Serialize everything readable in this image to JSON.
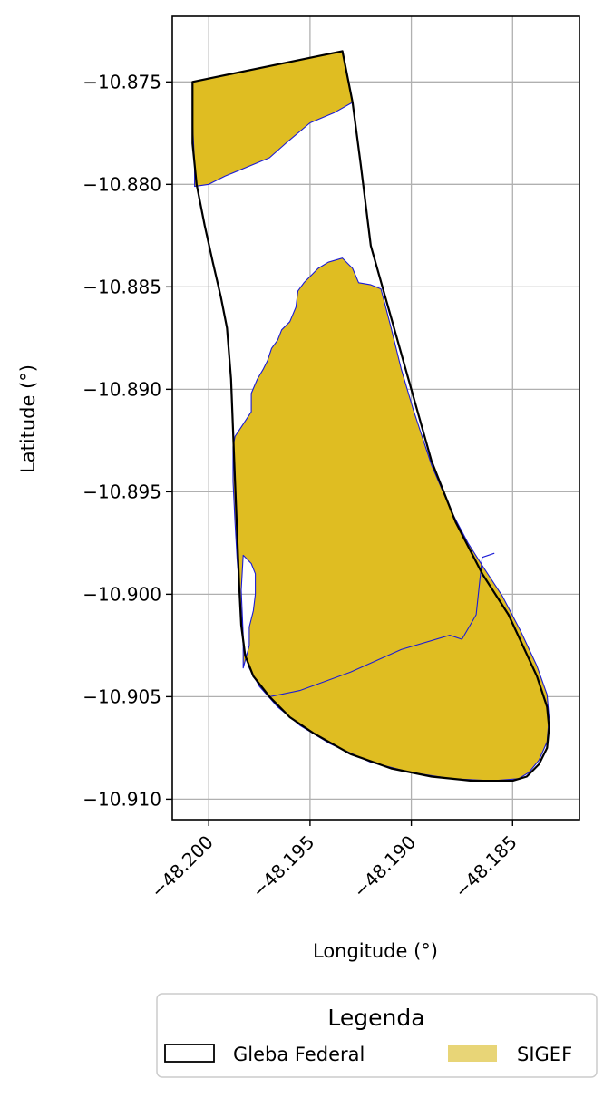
{
  "chart_data": {
    "type": "map",
    "xlabel": "Longitude (°)",
    "ylabel": "Latitude (°)",
    "xlim": [
      -48.2018,
      -48.1817
    ],
    "ylim": [
      -10.911,
      -10.8718
    ],
    "grid": true,
    "x_ticks": [
      {
        "value": -48.2,
        "label": "−48.200"
      },
      {
        "value": -48.195,
        "label": "−48.195"
      },
      {
        "value": -48.19,
        "label": "−48.190"
      },
      {
        "value": -48.185,
        "label": "−48.185"
      }
    ],
    "y_ticks": [
      {
        "value": -10.875,
        "label": "−10.875"
      },
      {
        "value": -10.88,
        "label": "−10.880"
      },
      {
        "value": -10.885,
        "label": "−10.885"
      },
      {
        "value": -10.89,
        "label": "−10.890"
      },
      {
        "value": -10.895,
        "label": "−10.895"
      },
      {
        "value": -10.9,
        "label": "−10.900"
      },
      {
        "value": -10.905,
        "label": "−10.905"
      },
      {
        "value": -10.91,
        "label": "−10.910"
      }
    ],
    "legend": {
      "title": "Legenda",
      "placement": "below",
      "entries": [
        {
          "label": "Gleba Federal",
          "style": "outline",
          "color": "#000000"
        },
        {
          "label": "SIGEF",
          "style": "fill",
          "color": "#e8d577"
        }
      ]
    },
    "layers": [
      {
        "name": "SIGEF",
        "fill": "#dfbd22",
        "stroke": "#1b1bd6",
        "polygons": [
          [
            [
              -48.2008,
              -10.875
            ],
            [
              -48.1934,
              -10.8735
            ],
            [
              -48.1929,
              -10.876
            ],
            [
              -48.1938,
              -10.8765
            ],
            [
              -48.195,
              -10.877
            ],
            [
              -48.1962,
              -10.878
            ],
            [
              -48.197,
              -10.8787
            ],
            [
              -48.1992,
              -10.8796
            ],
            [
              -48.2,
              -10.88
            ],
            [
              -48.2007,
              -10.8801
            ],
            [
              -48.2007,
              -10.879
            ],
            [
              -48.2008,
              -10.877
            ],
            [
              -48.2008,
              -10.876
            ]
          ],
          [
            [
              -48.1934,
              -10.8836
            ],
            [
              -48.1929,
              -10.8841
            ],
            [
              -48.1926,
              -10.8848
            ],
            [
              -48.192,
              -10.8849
            ],
            [
              -48.1915,
              -10.8851
            ],
            [
              -48.191,
              -10.887
            ],
            [
              -48.1905,
              -10.889
            ],
            [
              -48.1899,
              -10.891
            ],
            [
              -48.189,
              -10.8937
            ],
            [
              -48.188,
              -10.896
            ],
            [
              -48.1872,
              -10.8975
            ],
            [
              -48.1865,
              -10.8986
            ],
            [
              -48.1855,
              -10.9001
            ],
            [
              -48.1846,
              -10.9018
            ],
            [
              -48.1838,
              -10.9035
            ],
            [
              -48.1833,
              -10.9049
            ],
            [
              -48.1832,
              -10.906
            ],
            [
              -48.1833,
              -10.9072
            ],
            [
              -48.1837,
              -10.9081
            ],
            [
              -48.1842,
              -10.9087
            ],
            [
              -48.1847,
              -10.909
            ],
            [
              -48.186,
              -10.9091
            ],
            [
              -48.188,
              -10.909
            ],
            [
              -48.19,
              -10.9087
            ],
            [
              -48.192,
              -10.9082
            ],
            [
              -48.194,
              -10.9073
            ],
            [
              -48.1955,
              -10.9064
            ],
            [
              -48.1966,
              -10.9055
            ],
            [
              -48.1975,
              -10.9045
            ],
            [
              -48.198,
              -10.9036
            ],
            [
              -48.1983,
              -10.9025
            ],
            [
              -48.1984,
              -10.901
            ],
            [
              -48.1985,
              -10.8995
            ],
            [
              -48.1986,
              -10.8983
            ],
            [
              -48.1987,
              -10.8965
            ],
            [
              -48.1988,
              -10.8945
            ],
            [
              -48.1988,
              -10.8928
            ],
            [
              -48.1987,
              -10.8923
            ],
            [
              -48.1983,
              -10.8917
            ],
            [
              -48.1979,
              -10.8911
            ],
            [
              -48.1979,
              -10.8902
            ],
            [
              -48.1976,
              -10.8895
            ],
            [
              -48.1973,
              -10.889
            ],
            [
              -48.1971,
              -10.8886
            ],
            [
              -48.1969,
              -10.888
            ],
            [
              -48.1966,
              -10.8876
            ],
            [
              -48.1964,
              -10.8871
            ],
            [
              -48.196,
              -10.8867
            ],
            [
              -48.1957,
              -10.886
            ],
            [
              -48.1956,
              -10.8852
            ],
            [
              -48.1953,
              -10.8848
            ],
            [
              -48.195,
              -10.8845
            ],
            [
              -48.1946,
              -10.8841
            ],
            [
              -48.1941,
              -10.8838
            ]
          ]
        ],
        "holes": [
          [
            [
              -48.1983,
              -10.9036
            ],
            [
              -48.198,
              -10.9025
            ],
            [
              -48.198,
              -10.9016
            ],
            [
              -48.1978,
              -10.9008
            ],
            [
              -48.1977,
              -10.9
            ],
            [
              -48.1977,
              -10.899
            ],
            [
              -48.1979,
              -10.8985
            ],
            [
              -48.1983,
              -10.8981
            ],
            [
              -48.1984,
              -10.8998
            ],
            [
              -48.1983,
              -10.902
            ]
          ]
        ],
        "boundaries": [
          [
            [
              -48.197,
              -10.905
            ],
            [
              -48.1955,
              -10.9047
            ],
            [
              -48.193,
              -10.9038
            ],
            [
              -48.1905,
              -10.9027
            ],
            [
              -48.1881,
              -10.902
            ],
            [
              -48.1875,
              -10.9022
            ],
            [
              -48.1868,
              -10.901
            ],
            [
              -48.1865,
              -10.8982
            ],
            [
              -48.1859,
              -10.898
            ]
          ]
        ]
      },
      {
        "name": "Gleba Federal",
        "fill": "none",
        "stroke": "#000000",
        "polygons": [
          [
            [
              -48.2008,
              -10.875
            ],
            [
              -48.1934,
              -10.8735
            ],
            [
              -48.1929,
              -10.876
            ],
            [
              -48.1925,
              -10.879
            ],
            [
              -48.192,
              -10.883
            ],
            [
              -48.191,
              -10.8865
            ],
            [
              -48.19,
              -10.89
            ],
            [
              -48.189,
              -10.8935
            ],
            [
              -48.1878,
              -10.8965
            ],
            [
              -48.1865,
              -10.899
            ],
            [
              -48.1852,
              -10.901
            ],
            [
              -48.1845,
              -10.9025
            ],
            [
              -48.1838,
              -10.904
            ],
            [
              -48.1833,
              -10.9055
            ],
            [
              -48.1832,
              -10.9065
            ],
            [
              -48.1833,
              -10.9075
            ],
            [
              -48.1837,
              -10.9083
            ],
            [
              -48.1843,
              -10.9089
            ],
            [
              -48.185,
              -10.9091
            ],
            [
              -48.187,
              -10.9091
            ],
            [
              -48.189,
              -10.9089
            ],
            [
              -48.191,
              -10.9085
            ],
            [
              -48.193,
              -10.9078
            ],
            [
              -48.1948,
              -10.9068
            ],
            [
              -48.196,
              -10.906
            ],
            [
              -48.197,
              -10.905
            ],
            [
              -48.1978,
              -10.904
            ],
            [
              -48.1982,
              -10.903
            ],
            [
              -48.1984,
              -10.9015
            ],
            [
              -48.1985,
              -10.8995
            ],
            [
              -48.1986,
              -10.897
            ],
            [
              -48.1987,
              -10.8945
            ],
            [
              -48.1988,
              -10.892
            ],
            [
              -48.1989,
              -10.8895
            ],
            [
              -48.1991,
              -10.887
            ],
            [
              -48.1994,
              -10.8855
            ],
            [
              -48.1998,
              -10.8838
            ],
            [
              -48.2002,
              -10.882
            ],
            [
              -48.2006,
              -10.88
            ],
            [
              -48.2008,
              -10.878
            ],
            [
              -48.2008,
              -10.877
            ],
            [
              -48.2008,
              -10.876
            ]
          ]
        ]
      }
    ]
  }
}
